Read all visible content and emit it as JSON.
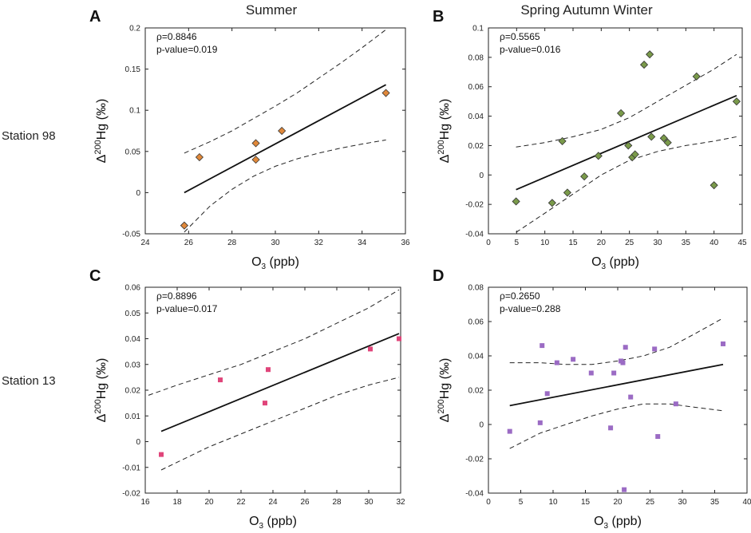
{
  "header": {
    "col_left": "Summer",
    "col_right": "Spring Autumn Winter",
    "row_top": "Station 98",
    "row_bottom": "Station 13"
  },
  "chart_data": [
    {
      "type": "scatter",
      "panel": "A",
      "title": "Summer",
      "row": "Station 98",
      "xlabel_main": "O",
      "xlabel_sub": "3",
      "xlabel_unit": " (ppb)",
      "ylabel_prefix": "Δ",
      "ylabel_sup": "200",
      "ylabel_main": "Hg (‰)",
      "annotation": {
        "rho": "ρ=0.8846",
        "pvalue": "p-value=0.019"
      },
      "xlim": [
        24,
        36
      ],
      "ylim": [
        -0.05,
        0.2
      ],
      "xticks": [
        24,
        26,
        28,
        30,
        32,
        34,
        36
      ],
      "yticks": [
        -0.05,
        0,
        0.05,
        0.1,
        0.15,
        0.2
      ],
      "xtick_labels": [
        "24",
        "26",
        "28",
        "30",
        "32",
        "34",
        "36"
      ],
      "ytick_labels": [
        "-0.05",
        "0",
        "0.05",
        "0.1",
        "0.15",
        "0.2"
      ],
      "marker": "diamond",
      "marker_color": "#e0883a",
      "points": {
        "x": [
          25.8,
          26.5,
          29.1,
          29.1,
          30.3,
          35.1
        ],
        "y": [
          -0.04,
          0.043,
          0.06,
          0.04,
          0.075,
          0.121
        ]
      },
      "fit": {
        "x": [
          25.8,
          35.1
        ],
        "y": [
          0.0,
          0.131
        ]
      },
      "ci_upper": {
        "x": [
          25.8,
          27,
          28,
          29,
          30,
          31,
          32,
          33,
          34,
          35.1
        ],
        "y": [
          0.048,
          0.062,
          0.075,
          0.09,
          0.105,
          0.121,
          0.139,
          0.157,
          0.176,
          0.198
        ]
      },
      "ci_lower": {
        "x": [
          25.8,
          27,
          28,
          29,
          30,
          31,
          32,
          33,
          34,
          35.1
        ],
        "y": [
          -0.048,
          -0.016,
          0.004,
          0.02,
          0.032,
          0.041,
          0.048,
          0.054,
          0.059,
          0.064
        ]
      }
    },
    {
      "type": "scatter",
      "panel": "B",
      "title": "Spring Autumn Winter",
      "row": "Station 98",
      "xlabel_main": "O",
      "xlabel_sub": "3",
      "xlabel_unit": " (ppb)",
      "ylabel_prefix": "Δ",
      "ylabel_sup": "200",
      "ylabel_main": "Hg (‰)",
      "annotation": {
        "rho": "ρ=0.5565",
        "pvalue": "p-value=0.016"
      },
      "xlim": [
        0,
        45
      ],
      "ylim": [
        -0.04,
        0.1
      ],
      "xticks": [
        0,
        5,
        10,
        15,
        20,
        25,
        30,
        35,
        40,
        45
      ],
      "yticks": [
        -0.04,
        -0.02,
        0,
        0.02,
        0.04,
        0.06,
        0.08,
        0.1
      ],
      "xtick_labels": [
        "0",
        "5",
        "10",
        "15",
        "20",
        "25",
        "30",
        "35",
        "40",
        "45"
      ],
      "ytick_labels": [
        "-0.04",
        "-0.02",
        "0",
        "0.02",
        "0.04",
        "0.06",
        "0.08",
        "0.1"
      ],
      "marker": "diamond",
      "marker_color": "#7a9a4a",
      "points": {
        "x": [
          4.9,
          11.3,
          13.1,
          14.0,
          17.0,
          19.5,
          23.5,
          24.8,
          25.5,
          26.0,
          27.6,
          28.6,
          28.9,
          31.1,
          31.8,
          36.9,
          40.0,
          44.0
        ],
        "y": [
          -0.018,
          -0.019,
          0.023,
          -0.012,
          -0.001,
          0.013,
          0.042,
          0.02,
          0.012,
          0.014,
          0.075,
          0.082,
          0.026,
          0.025,
          0.022,
          0.067,
          -0.007,
          0.05
        ]
      },
      "fit": {
        "x": [
          4.9,
          44.0
        ],
        "y": [
          -0.01,
          0.054
        ]
      },
      "ci_upper": {
        "x": [
          4.9,
          10,
          15,
          20,
          25,
          30,
          35,
          40,
          44.0
        ],
        "y": [
          0.019,
          0.022,
          0.026,
          0.031,
          0.039,
          0.05,
          0.061,
          0.072,
          0.082
        ]
      },
      "ci_lower": {
        "x": [
          4.9,
          10,
          15,
          20,
          25,
          30,
          35,
          40,
          44.0
        ],
        "y": [
          -0.039,
          -0.026,
          -0.013,
          0.0,
          0.01,
          0.016,
          0.02,
          0.023,
          0.026
        ]
      }
    },
    {
      "type": "scatter",
      "panel": "C",
      "title": "Summer",
      "row": "Station 13",
      "xlabel_main": "O",
      "xlabel_sub": "3",
      "xlabel_unit": " (ppb)",
      "ylabel_prefix": "Δ",
      "ylabel_sup": "200",
      "ylabel_main": "Hg (‰)",
      "annotation": {
        "rho": "ρ=0.8896",
        "pvalue": "p-value=0.017"
      },
      "xlim": [
        16,
        32
      ],
      "ylim": [
        -0.02,
        0.06
      ],
      "xticks": [
        16,
        18,
        20,
        22,
        24,
        26,
        28,
        30,
        32
      ],
      "yticks": [
        -0.02,
        -0.01,
        0,
        0.01,
        0.02,
        0.03,
        0.04,
        0.05,
        0.06
      ],
      "xtick_labels": [
        "16",
        "18",
        "20",
        "22",
        "24",
        "26",
        "28",
        "30",
        "32"
      ],
      "ytick_labels": [
        "-0.02",
        "-0.01",
        "0",
        "0.01",
        "0.02",
        "0.03",
        "0.04",
        "0.05",
        "0.06"
      ],
      "marker": "square",
      "marker_color": "#e0457a",
      "points": {
        "x": [
          17.0,
          20.7,
          23.5,
          23.7,
          30.1,
          31.9
        ],
        "y": [
          -0.005,
          0.024,
          0.015,
          0.028,
          0.036,
          0.04
        ]
      },
      "fit": {
        "x": [
          17.0,
          31.9
        ],
        "y": [
          0.004,
          0.042
        ]
      },
      "ci_upper": {
        "x": [
          16.2,
          18,
          20,
          22,
          24,
          26,
          28,
          30,
          31.9
        ],
        "y": [
          0.018,
          0.022,
          0.026,
          0.03,
          0.035,
          0.04,
          0.046,
          0.052,
          0.059
        ]
      },
      "ci_lower": {
        "x": [
          17.0,
          18,
          20,
          22,
          24,
          26,
          28,
          30,
          31.9
        ],
        "y": [
          -0.011,
          -0.008,
          -0.002,
          0.003,
          0.008,
          0.013,
          0.018,
          0.022,
          0.025
        ]
      }
    },
    {
      "type": "scatter",
      "panel": "D",
      "title": "Spring Autumn Winter",
      "row": "Station 13",
      "xlabel_main": "O",
      "xlabel_sub": "3",
      "xlabel_unit": " (ppb)",
      "ylabel_prefix": "Δ",
      "ylabel_sup": "200",
      "ylabel_main": "Hg (‰)",
      "annotation": {
        "rho": "ρ=0.2650",
        "pvalue": "p-value=0.288"
      },
      "xlim": [
        0,
        40
      ],
      "ylim": [
        -0.04,
        0.08
      ],
      "xticks": [
        0,
        5,
        10,
        15,
        20,
        25,
        30,
        35,
        40
      ],
      "yticks": [
        -0.04,
        -0.02,
        0,
        0.02,
        0.04,
        0.06,
        0.08
      ],
      "xtick_labels": [
        "0",
        "5",
        "10",
        "15",
        "20",
        "25",
        "30",
        "35",
        "40"
      ],
      "ytick_labels": [
        "-0.04",
        "-0.02",
        "0",
        "0.02",
        "0.04",
        "0.06",
        "0.08"
      ],
      "marker": "square",
      "marker_color": "#9b6bc4",
      "points": {
        "x": [
          3.3,
          8.0,
          8.3,
          9.1,
          10.6,
          13.1,
          15.9,
          18.9,
          19.4,
          20.5,
          20.8,
          21.0,
          21.2,
          22.0,
          25.7,
          26.2,
          29.0,
          36.3
        ],
        "y": [
          -0.004,
          0.001,
          0.046,
          0.018,
          0.036,
          0.038,
          0.03,
          -0.002,
          0.03,
          0.037,
          0.036,
          -0.038,
          0.045,
          0.016,
          0.044,
          -0.007,
          0.012,
          0.047
        ]
      },
      "fit": {
        "x": [
          3.3,
          36.3
        ],
        "y": [
          0.011,
          0.035
        ]
      },
      "ci_upper": {
        "x": [
          3.3,
          8,
          12,
          16,
          20,
          24,
          28,
          32,
          36.3
        ],
        "y": [
          0.036,
          0.036,
          0.035,
          0.035,
          0.037,
          0.04,
          0.045,
          0.053,
          0.062
        ]
      },
      "ci_lower": {
        "x": [
          3.3,
          8,
          12,
          16,
          20,
          24,
          28,
          32,
          36.3
        ],
        "y": [
          -0.014,
          -0.005,
          0.0,
          0.005,
          0.009,
          0.012,
          0.012,
          0.01,
          0.008
        ]
      }
    }
  ]
}
